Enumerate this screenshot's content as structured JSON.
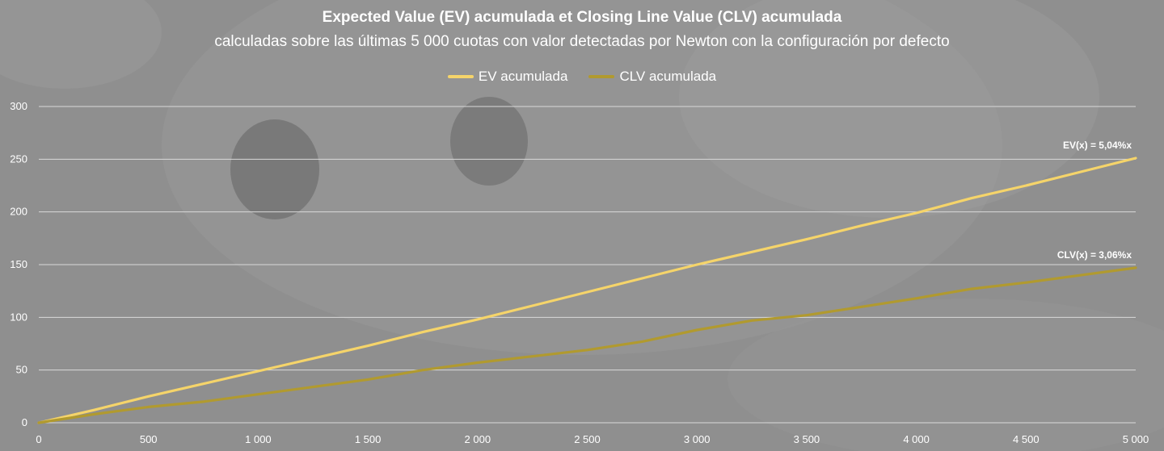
{
  "colors": {
    "background": "#8e8e8e",
    "grid": "#d9d9d9",
    "ev_line": "#f5d46a",
    "clv_line": "#b19a2f",
    "text": "#ffffff"
  },
  "chart_data": {
    "type": "line",
    "title": "Expected Value (EV) acumulada et Closing Line Value (CLV) acumulada",
    "subtitle": "calculadas sobre las últimas 5 000 cuotas con valor detectadas por Newton con la configuración por defecto",
    "xlabel": "",
    "ylabel": "",
    "xlim": [
      0,
      5000
    ],
    "ylim": [
      0,
      300
    ],
    "grid": true,
    "legend_position": "top-center",
    "x_ticks": [
      0,
      500,
      1000,
      1500,
      2000,
      2500,
      3000,
      3500,
      4000,
      4500,
      5000
    ],
    "x_tick_labels": [
      "0",
      "500",
      "1 000",
      "1 500",
      "2 000",
      "2 500",
      "3 000",
      "3 500",
      "4 000",
      "4 500",
      "5 000"
    ],
    "y_ticks": [
      0,
      50,
      100,
      150,
      200,
      250,
      300
    ],
    "y_tick_labels": [
      "0",
      "50",
      "100",
      "150",
      "200",
      "250",
      "300"
    ],
    "series": [
      {
        "name": "EV acumulada",
        "color": "#f5d46a",
        "annotation": "EV(x) = 5,04%x",
        "x": [
          0,
          250,
          500,
          750,
          1000,
          1250,
          1500,
          1750,
          2000,
          2250,
          2500,
          2750,
          3000,
          3250,
          3500,
          3750,
          4000,
          4250,
          4500,
          4750,
          5000
        ],
        "values": [
          0,
          12,
          25,
          37,
          49,
          61,
          73,
          86,
          98,
          111,
          124,
          137,
          150,
          162,
          174,
          187,
          199,
          213,
          225,
          238,
          251
        ]
      },
      {
        "name": "CLV acumulada",
        "color": "#b19a2f",
        "annotation": "CLV(x) = 3,06%x",
        "x": [
          0,
          250,
          500,
          750,
          1000,
          1250,
          1500,
          1750,
          2000,
          2250,
          2500,
          2750,
          3000,
          3250,
          3500,
          3750,
          4000,
          4250,
          4500,
          4750,
          5000
        ],
        "values": [
          0,
          8,
          15,
          20,
          27,
          34,
          41,
          50,
          57,
          63,
          69,
          77,
          88,
          97,
          102,
          110,
          118,
          127,
          133,
          140,
          147
        ]
      }
    ]
  }
}
